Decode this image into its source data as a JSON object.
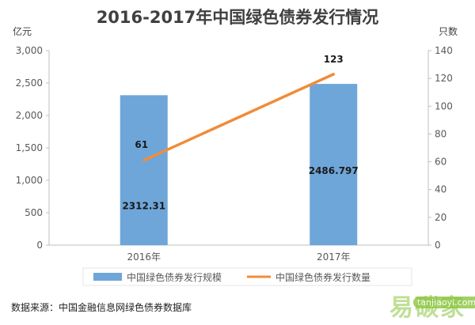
{
  "chart_data": {
    "type": "bar",
    "title": "2016-2017年中国绿色债券发行情况",
    "categories": [
      "2016年",
      "2017年"
    ],
    "left_axis": {
      "unit": "亿元",
      "range": [
        0,
        3000
      ],
      "ticks": [
        "0",
        "500",
        "1,000",
        "1,500",
        "2,000",
        "2,500",
        "3,000"
      ]
    },
    "right_axis": {
      "unit": "只数",
      "range": [
        0,
        140
      ],
      "ticks": [
        "0",
        "20",
        "40",
        "60",
        "80",
        "100",
        "120",
        "140"
      ]
    },
    "series": [
      {
        "name": "中国绿色债券发行规模",
        "kind": "bar",
        "axis": "left",
        "values": [
          2312.31,
          2486.797
        ],
        "labels": [
          "2312.31",
          "2486.797"
        ],
        "color": "#6fa6d9"
      },
      {
        "name": "中国绿色债券发行数量",
        "kind": "line",
        "axis": "right",
        "values": [
          61,
          123
        ],
        "labels": [
          "61",
          "123"
        ],
        "color": "#f08c3a"
      }
    ],
    "grid": false,
    "legend_position": "bottom"
  },
  "source": "数据来源：中国金融信息网绿色债券数据库",
  "watermark": {
    "text": "易碳家",
    "url": "tanjiaoyi.com"
  }
}
